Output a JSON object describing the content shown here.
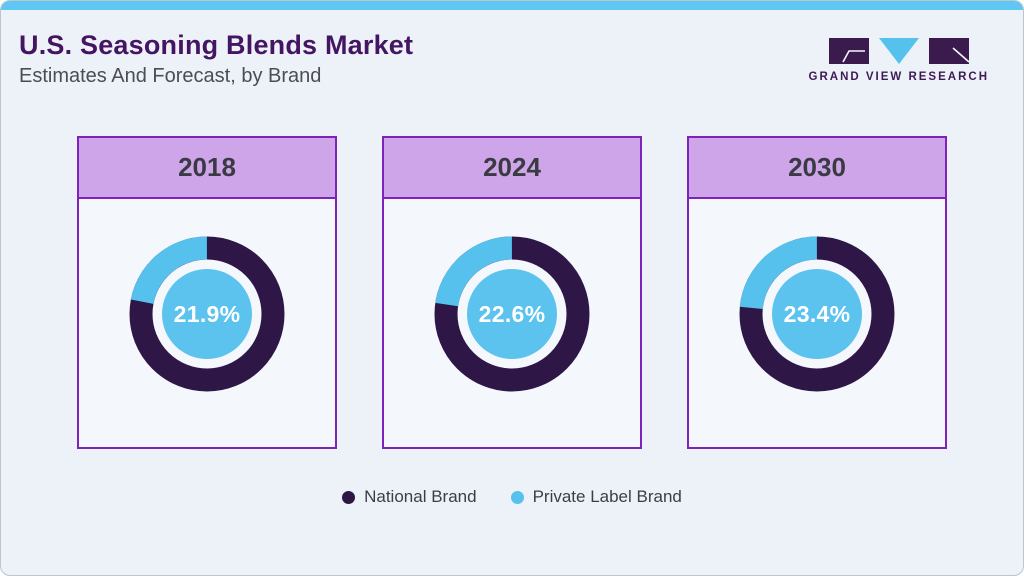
{
  "page": {
    "title": "U.S. Seasoning Blends Market",
    "subtitle": "Estimates And Forecast, by Brand",
    "logo_text": "GRAND VIEW RESEARCH"
  },
  "colors": {
    "national_brand": "#2e1646",
    "private_label_brand": "#56c1ed",
    "inner_circle": "#5bc3ee",
    "card_border": "#7d23b8",
    "card_header_fill": "#cda5e8",
    "title_text": "#441563",
    "topbar": "#5ec7f2",
    "page_background": "#edf2f8"
  },
  "chart_data": {
    "type": "pie",
    "title": "U.S. Seasoning Blends Market Estimates And Forecast, by Brand",
    "unit": "%",
    "legend": [
      "National Brand",
      "Private Label Brand"
    ],
    "legend_position": "bottom",
    "note": "Each donut shows Private Label Brand share (blue, labeled in center) vs National Brand share (dark) for that year; blue arc starts at 12 o'clock and sweeps counter-clockwise.",
    "charts": [
      {
        "year": "2018",
        "private_label_pct": 21.9,
        "national_pct": 78.1,
        "label": "21.9%"
      },
      {
        "year": "2024",
        "private_label_pct": 22.6,
        "national_pct": 77.4,
        "label": "22.6%"
      },
      {
        "year": "2030",
        "private_label_pct": 23.4,
        "national_pct": 76.6,
        "label": "23.4%"
      }
    ]
  }
}
